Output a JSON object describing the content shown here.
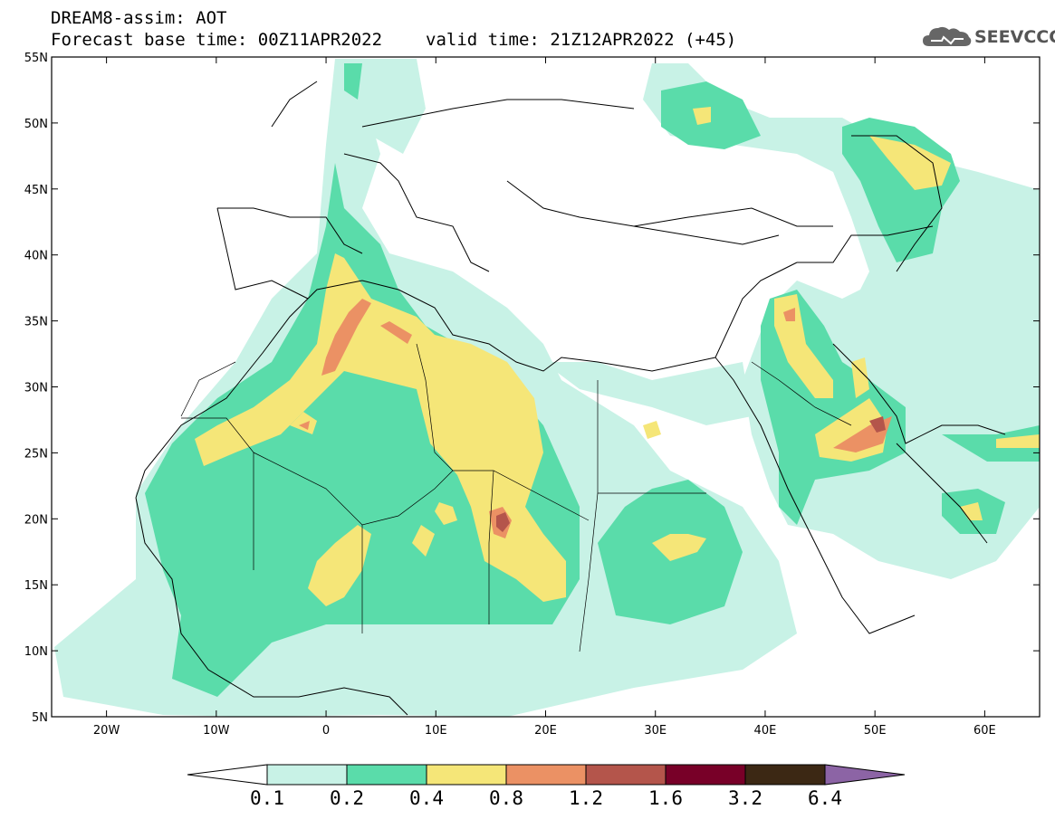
{
  "header": {
    "title_line1": "DREAM8-assim: AOT",
    "base_time": "Forecast base time: 00Z11APR2022",
    "valid_time": "valid time: 21Z12APR2022 (+45)",
    "logo_text": "SEEVCCC",
    "logo_icon": "cloud-icon"
  },
  "map": {
    "lon_range": [
      -25,
      65
    ],
    "lat_range": [
      5,
      55
    ],
    "lat_labels": [
      "55N",
      "50N",
      "45N",
      "40N",
      "35N",
      "30N",
      "25N",
      "20N",
      "15N",
      "10N",
      "5N"
    ],
    "lon_labels": [
      "20W",
      "10W",
      "0",
      "10E",
      "20E",
      "30E",
      "40E",
      "50E",
      "60E"
    ]
  },
  "colorbar": {
    "labels": [
      "0.1",
      "0.2",
      "0.4",
      "0.8",
      "1.2",
      "1.6",
      "3.2",
      "6.4"
    ],
    "colors": [
      "#ffffff",
      "#c8f2e6",
      "#5adcaa",
      "#f5e678",
      "#eb9164",
      "#b4554b",
      "#780028",
      "#3c2814",
      "#8c64a5"
    ]
  },
  "colors": {
    "aot_0_1": "#c8f2e6",
    "aot_0_2": "#5adcaa",
    "aot_0_4": "#f5e678",
    "aot_0_8": "#eb9164",
    "aot_1_2": "#b4554b"
  }
}
